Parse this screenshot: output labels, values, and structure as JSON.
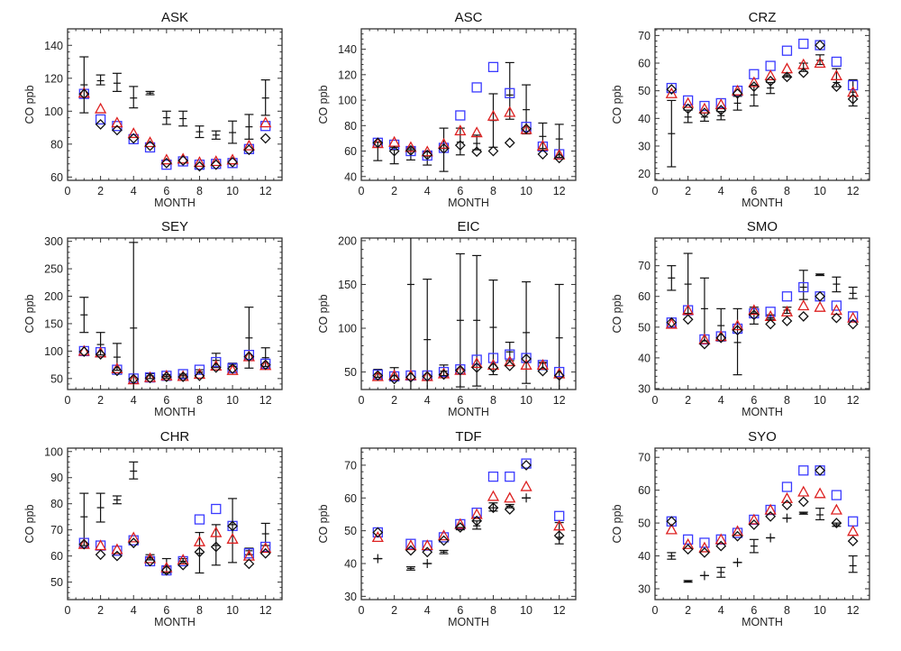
{
  "chart_data": {
    "type": "scatter",
    "xlabel": "MONTH",
    "ylabel": "CO ppb",
    "xlim": [
      0,
      13
    ],
    "xticks": [
      0,
      2,
      4,
      6,
      8,
      10,
      12
    ],
    "colors": {
      "square": "#3a3aff",
      "triangle": "#dd2020",
      "diamond": "#111111",
      "obs": "#111111"
    },
    "panels": [
      {
        "title": "ASK",
        "ylim": [
          58,
          150
        ],
        "yticks": [
          60,
          80,
          100,
          120,
          140
        ],
        "obs": [
          [
            116,
            99,
            133
          ],
          [
            118.5,
            116,
            122
          ],
          [
            117,
            112,
            123
          ],
          [
            108,
            102,
            115
          ],
          [
            111,
            110,
            112
          ],
          [
            96,
            92,
            100
          ],
          [
            95.5,
            91,
            100
          ],
          [
            87.5,
            84,
            91
          ],
          [
            85.5,
            83,
            88
          ],
          [
            87,
            80.5,
            94
          ],
          [
            90.5,
            83,
            98
          ],
          [
            108,
            97.5,
            119
          ]
        ],
        "square": [
          110.5,
          95,
          91,
          83,
          78,
          67.5,
          69.5,
          67.5,
          68,
          68.5,
          77,
          91
        ],
        "triangle": [
          111,
          101.5,
          93,
          86.5,
          81,
          70.5,
          71,
          69,
          69.5,
          70.5,
          79,
          93
        ],
        "diamond": [
          110.5,
          92,
          88.5,
          83.5,
          79,
          68.5,
          70,
          66.5,
          67.5,
          69,
          76.5,
          83.5
        ]
      },
      {
        "title": "ASC",
        "ylim": [
          37,
          156
        ],
        "yticks": [
          40,
          60,
          80,
          100,
          120,
          140
        ],
        "obs": [
          [
            63,
            52.5,
            67
          ],
          [
            61,
            50,
            63
          ],
          [
            61,
            53,
            62.5
          ],
          [
            56,
            49,
            59.5
          ],
          [
            62,
            44,
            78
          ],
          [
            67,
            57,
            78
          ],
          [
            66,
            61,
            72.5
          ],
          [
            84,
            63,
            105
          ],
          [
            104,
            85,
            129.5
          ],
          [
            92.5,
            73.5,
            112
          ],
          [
            71.5,
            62,
            82
          ],
          [
            69.5,
            55,
            81
          ]
        ],
        "square": [
          66.5,
          65,
          60,
          56.5,
          62.5,
          88,
          110,
          126,
          105.5,
          79,
          63.5,
          57.5
        ],
        "triangle": [
          66,
          67,
          63,
          59.5,
          65.5,
          76,
          74.5,
          87.5,
          90.5,
          77,
          64,
          57
        ],
        "diamond": [
          66.5,
          60,
          60.5,
          57,
          62,
          64.5,
          59.5,
          60,
          66.5,
          77.5,
          57.5,
          54.5
        ]
      },
      {
        "title": "CRZ",
        "ylim": [
          17.6,
          72.4
        ],
        "yticks": [
          20,
          30,
          40,
          50,
          60,
          70
        ],
        "obs": [
          [
            34.5,
            22.5,
            46.5
          ],
          [
            40.5,
            38.5,
            43
          ],
          [
            40.5,
            39,
            42
          ],
          [
            41,
            39.5,
            42.5
          ],
          [
            45.5,
            43,
            48
          ],
          [
            48.5,
            44.5,
            52
          ],
          [
            51,
            49,
            53
          ],
          [
            55.5,
            55,
            56.5
          ],
          [
            58,
            57,
            60
          ],
          [
            61,
            59.5,
            63
          ],
          [
            53,
            51.5,
            58
          ],
          [
            49.5,
            44.5,
            54
          ]
        ],
        "square": [
          51,
          46.5,
          44.5,
          45.5,
          50,
          56,
          59,
          64.5,
          67,
          66.5,
          60.5,
          52
        ],
        "triangle": [
          49,
          45.5,
          43.5,
          45,
          50,
          53,
          55.5,
          58,
          59.5,
          60,
          55.5,
          49.5
        ],
        "diamond": [
          50.5,
          43.5,
          42,
          43,
          49,
          51.5,
          53.5,
          55,
          56.5,
          66.5,
          51.5,
          47
        ]
      },
      {
        "title": "SEY",
        "ylim": [
          30,
          306
        ],
        "yticks": [
          50,
          100,
          150,
          200,
          250,
          300
        ],
        "obs": [
          [
            166,
            134,
            198
          ],
          [
            112,
            93,
            134
          ],
          [
            89,
            65,
            114
          ],
          [
            142,
            25,
            298
          ],
          [
            55,
            50,
            59
          ],
          [
            54,
            51,
            57
          ],
          [
            55,
            51,
            58
          ],
          [
            62,
            58,
            66
          ],
          [
            83,
            70,
            96
          ],
          [
            76,
            72,
            78
          ],
          [
            124,
            69,
            180
          ],
          [
            88,
            72,
            106
          ]
        ],
        "square": [
          100,
          98,
          66,
          50,
          52,
          55,
          58,
          66,
          80,
          69,
          93,
          77
        ],
        "triangle": [
          100,
          97,
          68,
          48,
          52,
          55,
          54,
          58,
          73,
          65,
          90,
          74
        ],
        "diamond": [
          99,
          94,
          64,
          49,
          51,
          53,
          53,
          55,
          70,
          68,
          90,
          75
        ]
      },
      {
        "title": "EIC",
        "ylim": [
          30,
          203
        ],
        "yticks": [
          50,
          100,
          150,
          200
        ],
        "obs": [
          [
            48,
            44,
            53
          ],
          [
            46,
            41,
            55
          ],
          [
            150,
            25,
            210
          ],
          [
            87,
            25,
            156
          ],
          [
            51,
            46,
            58
          ],
          [
            109,
            33,
            185
          ],
          [
            109,
            34,
            183
          ],
          [
            101,
            47,
            155
          ],
          [
            73,
            63,
            84
          ],
          [
            95,
            37,
            153
          ],
          [
            60,
            53,
            61
          ],
          [
            89,
            25,
            150
          ]
        ],
        "square": [
          47,
          45,
          46,
          46,
          50,
          53,
          64,
          66,
          70,
          66,
          58,
          50
        ],
        "triangle": [
          45,
          46,
          46,
          45,
          48,
          52,
          60,
          58,
          62,
          58,
          58,
          48
        ],
        "diamond": [
          46,
          42,
          44,
          45,
          47,
          52,
          55,
          55,
          57,
          65,
          51,
          46
        ]
      },
      {
        "title": "SMO",
        "ylim": [
          29.7,
          79
        ],
        "yticks": [
          30,
          40,
          50,
          60,
          70
        ],
        "obs": [
          [
            66,
            62,
            70
          ],
          [
            64,
            54.5,
            74
          ],
          [
            56,
            45.5,
            66
          ],
          [
            50.5,
            45.5,
            56
          ],
          [
            45,
            34.5,
            56
          ],
          [
            54.5,
            51,
            56.5
          ],
          [
            53,
            52.5,
            54
          ],
          [
            55.5,
            54.5,
            56.5
          ],
          [
            63,
            59,
            68.5
          ],
          [
            67,
            66.8,
            67.3
          ],
          [
            64,
            61.5,
            66.3
          ],
          [
            61,
            59.3,
            63
          ]
        ],
        "square": [
          51.5,
          55.5,
          46,
          47,
          49.5,
          54.5,
          55,
          60,
          63,
          60,
          57,
          53.5
        ],
        "triangle": [
          51,
          55.5,
          46,
          47,
          50.5,
          55.5,
          53.5,
          55,
          57,
          56.5,
          55.5,
          53
        ],
        "diamond": [
          51.5,
          52.5,
          44.5,
          46.5,
          49,
          54,
          51,
          52,
          53.5,
          60,
          53,
          51
        ]
      },
      {
        "title": "CHR",
        "ylim": [
          43.3,
          101.3
        ],
        "yticks": [
          50,
          60,
          70,
          80,
          90,
          100
        ],
        "obs": [
          [
            75,
            64,
            84
          ],
          [
            78.5,
            73,
            84
          ],
          [
            81.5,
            80,
            83
          ],
          [
            92.5,
            89.5,
            96
          ],
          [
            59.5,
            58.5,
            60.5
          ],
          [
            56,
            53.5,
            59
          ],
          [
            58,
            57,
            59
          ],
          [
            61,
            53.5,
            69
          ],
          [
            64,
            56.5,
            72
          ],
          [
            72,
            57.5,
            82
          ],
          [
            62,
            60.5,
            63
          ],
          [
            68.5,
            64,
            72.5
          ]
        ],
        "square": [
          65,
          64,
          62,
          66,
          58,
          54.5,
          58,
          74,
          78,
          71.5,
          61,
          63.5
        ],
        "triangle": [
          64.5,
          64,
          62.5,
          67,
          59,
          55.5,
          58.5,
          65.5,
          69,
          66.5,
          60,
          63
        ],
        "diamond": [
          64.5,
          60.5,
          60,
          65,
          58,
          54.5,
          56.5,
          61.5,
          63.5,
          71.5,
          57,
          61
        ]
      },
      {
        "title": "TDF",
        "ylim": [
          29,
          75.2
        ],
        "yticks": [
          30,
          40,
          50,
          60,
          70
        ],
        "obs": [
          [
            41.5,
            41.5,
            41.5
          ],
          null,
          [
            38.5,
            38,
            39
          ],
          [
            40,
            40,
            40
          ],
          [
            43.5,
            43,
            44
          ],
          [
            50.5,
            50.3,
            51
          ],
          [
            51.5,
            50.5,
            53
          ],
          [
            57,
            56,
            58.5
          ],
          [
            57.5,
            57,
            58
          ],
          [
            60,
            60,
            60
          ],
          null,
          [
            48,
            46,
            52.5
          ]
        ],
        "square": [
          49.5,
          null,
          46,
          45.5,
          48,
          52,
          55.5,
          66.5,
          66.5,
          70.5,
          null,
          54.5
        ],
        "triangle": [
          48,
          null,
          45.5,
          45.5,
          48.5,
          52,
          55,
          60.5,
          60,
          63.5,
          null,
          51.5
        ],
        "diamond": [
          49.5,
          null,
          44,
          43.5,
          47,
          51,
          53,
          57,
          56.5,
          70,
          null,
          48.5
        ]
      },
      {
        "title": "SYO",
        "ylim": [
          26.7,
          72.8
        ],
        "yticks": [
          30,
          40,
          50,
          60,
          70
        ],
        "obs": [
          [
            40,
            39,
            41
          ],
          [
            32.2,
            32,
            32.5
          ],
          [
            34,
            34,
            34
          ],
          [
            35,
            33.5,
            36.5
          ],
          [
            38,
            38,
            38
          ],
          [
            43,
            41,
            45
          ],
          [
            45.5,
            45.5,
            45.5
          ],
          [
            51.5,
            51.5,
            51.5
          ],
          [
            53,
            52.7,
            53.3
          ],
          [
            52.5,
            51,
            54.5
          ],
          [
            49.5,
            49,
            50
          ],
          [
            37,
            35,
            40
          ]
        ],
        "square": [
          50.5,
          45,
          44,
          45,
          47,
          51,
          54,
          61,
          66,
          66,
          58.5,
          50.5
        ],
        "triangle": [
          48,
          43.5,
          42.5,
          45,
          47.5,
          51,
          54,
          57.5,
          59.5,
          59,
          54,
          47.5
        ],
        "diamond": [
          50.5,
          42,
          41,
          43,
          46,
          49.5,
          52,
          55.5,
          56.5,
          66,
          50,
          44.5
        ]
      }
    ]
  }
}
